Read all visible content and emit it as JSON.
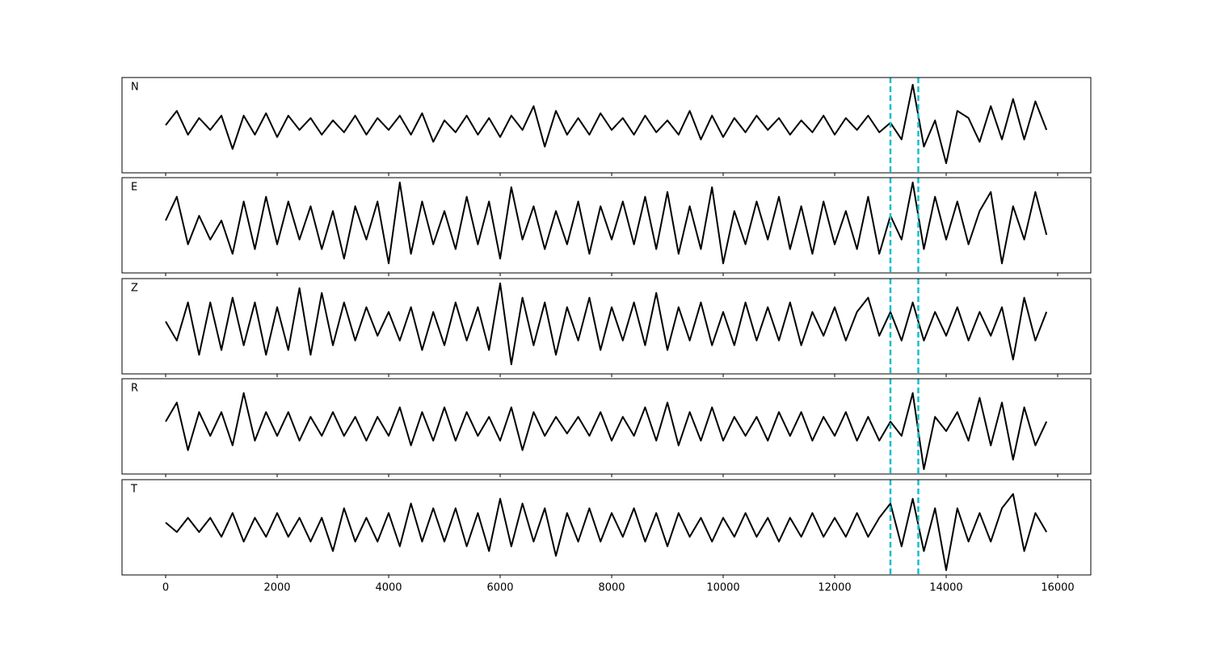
{
  "chart_data": {
    "type": "line",
    "x": [
      0,
      200,
      400,
      600,
      800,
      1000,
      1200,
      1400,
      1600,
      1800,
      2000,
      2200,
      2400,
      2600,
      2800,
      3000,
      3200,
      3400,
      3600,
      3800,
      4000,
      4200,
      4400,
      4600,
      4800,
      5000,
      5200,
      5400,
      5600,
      5800,
      6000,
      6200,
      6400,
      6600,
      6800,
      7000,
      7200,
      7400,
      7600,
      7800,
      8000,
      8200,
      8400,
      8600,
      8800,
      9000,
      9200,
      9400,
      9600,
      9800,
      10000,
      10200,
      10400,
      10600,
      10800,
      11000,
      11200,
      11400,
      11600,
      11800,
      12000,
      12200,
      12400,
      12600,
      12800,
      13000,
      13200,
      13400,
      13600,
      13800,
      14000,
      14200,
      14400,
      14600,
      14800,
      15000,
      15200,
      15400,
      15600,
      15800
    ],
    "xlim": [
      -783,
      16594
    ],
    "xticks": [
      0,
      2000,
      4000,
      6000,
      8000,
      10000,
      12000,
      14000,
      16000
    ],
    "ylim": [
      -1,
      1
    ],
    "markers": [
      13000,
      13500
    ],
    "marker_color": "#17becf",
    "series": [
      {
        "name": "N",
        "color": "#000000",
        "values": [
          0.0,
          0.3,
          -0.2,
          0.15,
          -0.1,
          0.2,
          -0.5,
          0.2,
          -0.2,
          0.25,
          -0.25,
          0.2,
          -0.1,
          0.15,
          -0.2,
          0.1,
          -0.15,
          0.2,
          -0.2,
          0.15,
          -0.1,
          0.2,
          -0.2,
          0.25,
          -0.35,
          0.1,
          -0.15,
          0.2,
          -0.2,
          0.15,
          -0.25,
          0.2,
          -0.1,
          0.4,
          -0.45,
          0.3,
          -0.2,
          0.15,
          -0.2,
          0.25,
          -0.1,
          0.15,
          -0.2,
          0.2,
          -0.15,
          0.1,
          -0.2,
          0.3,
          -0.3,
          0.2,
          -0.25,
          0.15,
          -0.15,
          0.2,
          -0.1,
          0.15,
          -0.2,
          0.1,
          -0.15,
          0.2,
          -0.2,
          0.15,
          -0.1,
          0.2,
          -0.15,
          0.05,
          -0.3,
          0.85,
          -0.45,
          0.1,
          -0.8,
          0.3,
          0.15,
          -0.35,
          0.4,
          -0.3,
          0.55,
          -0.3,
          0.5,
          -0.1
        ]
      },
      {
        "name": "E",
        "color": "#000000",
        "values": [
          0.1,
          0.6,
          -0.4,
          0.2,
          -0.3,
          0.1,
          -0.6,
          0.5,
          -0.5,
          0.6,
          -0.4,
          0.5,
          -0.3,
          0.4,
          -0.5,
          0.3,
          -0.7,
          0.4,
          -0.3,
          0.5,
          -0.8,
          0.9,
          -0.6,
          0.5,
          -0.4,
          0.3,
          -0.5,
          0.6,
          -0.4,
          0.5,
          -0.7,
          0.8,
          -0.3,
          0.4,
          -0.5,
          0.3,
          -0.4,
          0.5,
          -0.6,
          0.4,
          -0.3,
          0.5,
          -0.4,
          0.6,
          -0.5,
          0.7,
          -0.6,
          0.4,
          -0.5,
          0.8,
          -0.8,
          0.3,
          -0.4,
          0.5,
          -0.3,
          0.6,
          -0.5,
          0.4,
          -0.6,
          0.5,
          -0.4,
          0.3,
          -0.5,
          0.6,
          -0.6,
          0.2,
          -0.3,
          0.9,
          -0.5,
          0.6,
          -0.3,
          0.5,
          -0.4,
          0.3,
          0.7,
          -0.8,
          0.4,
          -0.3,
          0.7,
          -0.2
        ]
      },
      {
        "name": "Z",
        "color": "#000000",
        "values": [
          0.1,
          -0.3,
          0.5,
          -0.6,
          0.5,
          -0.5,
          0.6,
          -0.4,
          0.5,
          -0.6,
          0.4,
          -0.5,
          0.8,
          -0.6,
          0.7,
          -0.4,
          0.5,
          -0.3,
          0.4,
          -0.2,
          0.3,
          -0.3,
          0.4,
          -0.5,
          0.3,
          -0.4,
          0.5,
          -0.3,
          0.4,
          -0.5,
          0.9,
          -0.8,
          0.6,
          -0.4,
          0.5,
          -0.6,
          0.4,
          -0.3,
          0.6,
          -0.5,
          0.4,
          -0.3,
          0.5,
          -0.4,
          0.7,
          -0.5,
          0.4,
          -0.3,
          0.5,
          -0.4,
          0.3,
          -0.4,
          0.5,
          -0.3,
          0.4,
          -0.3,
          0.5,
          -0.4,
          0.3,
          -0.2,
          0.4,
          -0.3,
          0.3,
          0.6,
          -0.2,
          0.3,
          -0.3,
          0.5,
          -0.3,
          0.3,
          -0.2,
          0.4,
          -0.3,
          0.3,
          -0.2,
          0.4,
          -0.7,
          0.6,
          -0.3,
          0.3
        ]
      },
      {
        "name": "R",
        "color": "#000000",
        "values": [
          0.1,
          0.5,
          -0.5,
          0.3,
          -0.2,
          0.3,
          -0.4,
          0.7,
          -0.3,
          0.3,
          -0.2,
          0.3,
          -0.3,
          0.2,
          -0.2,
          0.3,
          -0.2,
          0.2,
          -0.3,
          0.2,
          -0.2,
          0.4,
          -0.4,
          0.3,
          -0.3,
          0.4,
          -0.3,
          0.3,
          -0.2,
          0.2,
          -0.3,
          0.4,
          -0.5,
          0.3,
          -0.2,
          0.2,
          -0.15,
          0.2,
          -0.2,
          0.3,
          -0.3,
          0.2,
          -0.2,
          0.4,
          -0.3,
          0.5,
          -0.4,
          0.3,
          -0.3,
          0.4,
          -0.3,
          0.2,
          -0.2,
          0.2,
          -0.3,
          0.3,
          -0.2,
          0.3,
          -0.3,
          0.2,
          -0.2,
          0.3,
          -0.3,
          0.2,
          -0.3,
          0.1,
          -0.2,
          0.7,
          -0.9,
          0.2,
          -0.1,
          0.3,
          -0.3,
          0.6,
          -0.4,
          0.5,
          -0.7,
          0.4,
          -0.4,
          0.1
        ]
      },
      {
        "name": "T",
        "color": "#000000",
        "values": [
          0.1,
          -0.1,
          0.2,
          -0.1,
          0.2,
          -0.2,
          0.3,
          -0.3,
          0.2,
          -0.2,
          0.3,
          -0.2,
          0.2,
          -0.3,
          0.2,
          -0.5,
          0.4,
          -0.3,
          0.2,
          -0.3,
          0.3,
          -0.4,
          0.5,
          -0.3,
          0.4,
          -0.3,
          0.4,
          -0.4,
          0.3,
          -0.5,
          0.6,
          -0.4,
          0.5,
          -0.3,
          0.4,
          -0.6,
          0.3,
          -0.3,
          0.4,
          -0.3,
          0.3,
          -0.2,
          0.4,
          -0.3,
          0.3,
          -0.4,
          0.3,
          -0.2,
          0.2,
          -0.3,
          0.2,
          -0.2,
          0.3,
          -0.2,
          0.2,
          -0.3,
          0.2,
          -0.2,
          0.3,
          -0.2,
          0.2,
          -0.2,
          0.3,
          -0.2,
          0.2,
          0.5,
          -0.4,
          0.6,
          -0.5,
          0.4,
          -0.9,
          0.4,
          -0.3,
          0.3,
          -0.3,
          0.4,
          0.7,
          -0.5,
          0.3,
          -0.1
        ]
      }
    ]
  }
}
